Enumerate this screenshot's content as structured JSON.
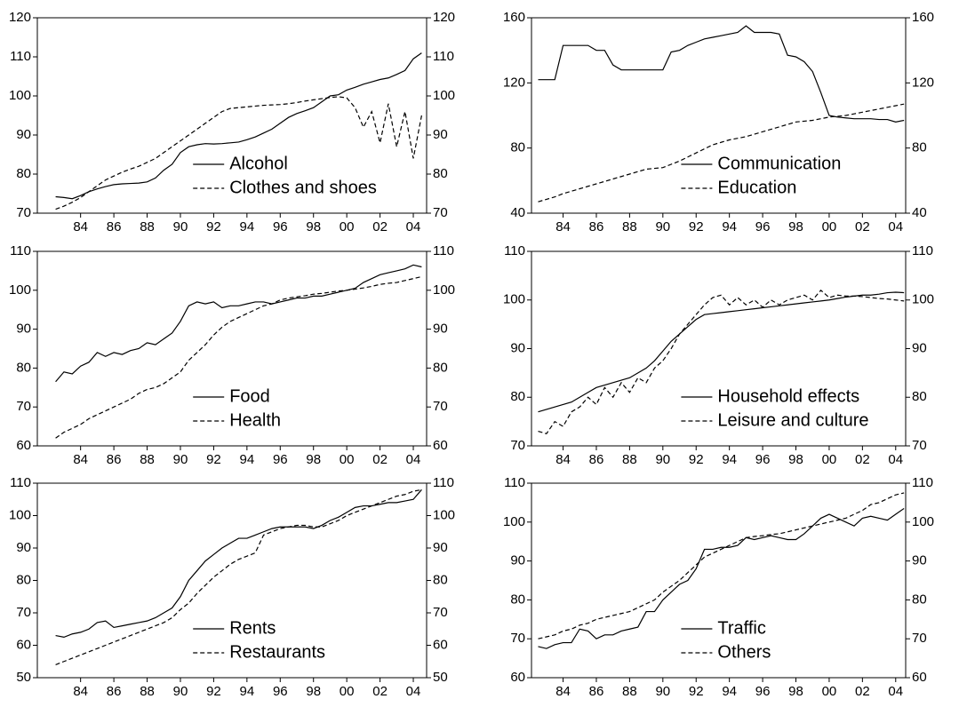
{
  "chart_data": [
    {
      "type": "line",
      "legend": "lower center",
      "x": [
        82.5,
        83,
        83.5,
        84,
        84.5,
        85,
        85.5,
        86,
        86.5,
        87,
        87.5,
        88,
        88.5,
        89,
        89.5,
        90,
        90.5,
        91,
        91.5,
        92,
        92.5,
        93,
        93.5,
        94,
        94.5,
        95,
        95.5,
        96,
        96.5,
        97,
        97.5,
        98,
        98.5,
        99,
        99.5,
        100,
        100.5,
        101,
        101.5,
        102,
        102.5,
        103,
        103.5,
        104,
        104.5
      ],
      "xlim": [
        81.4,
        104.8
      ],
      "xticks": [
        84,
        86,
        88,
        90,
        92,
        94,
        96,
        98,
        {
          "value": 100,
          "label": "00"
        },
        {
          "value": 102,
          "label": "02"
        },
        {
          "value": 104,
          "label": "04"
        }
      ],
      "ylim": [
        70,
        120
      ],
      "yticks": [
        70,
        80,
        90,
        100,
        110,
        120
      ],
      "series": [
        {
          "name": "Alcohol",
          "color": "#000000",
          "dash": "solid",
          "values": [
            74.2,
            74,
            73.7,
            74.5,
            75.5,
            76.2,
            76.8,
            77.3,
            77.5,
            77.6,
            77.7,
            78,
            79,
            81,
            82.5,
            85.5,
            87,
            87.5,
            87.8,
            87.7,
            87.8,
            88,
            88.2,
            88.8,
            89.5,
            90.5,
            91.5,
            93,
            94.5,
            95.5,
            96.2,
            97,
            98.5,
            100,
            100.3,
            101.5,
            102.2,
            103,
            103.6,
            104.2,
            104.6,
            105.5,
            106.5,
            109.5,
            111
          ]
        },
        {
          "name": "Clothes and shoes",
          "color": "#000000",
          "dash": "dashed",
          "values": [
            71,
            71.8,
            72.8,
            74,
            75.5,
            77,
            78.5,
            79.5,
            80.5,
            81.3,
            82,
            83,
            84,
            85.5,
            87,
            88.5,
            90,
            91.5,
            93,
            94.5,
            96,
            96.8,
            97,
            97.2,
            97.4,
            97.6,
            97.7,
            97.8,
            98,
            98.3,
            98.7,
            99,
            99.3,
            99.6,
            99.8,
            99.5,
            97,
            92,
            96,
            88,
            98,
            87,
            96,
            84,
            95
          ]
        }
      ]
    },
    {
      "type": "line",
      "legend": "lower center",
      "x": [
        82.5,
        83,
        83.5,
        84,
        84.5,
        85,
        85.5,
        86,
        86.5,
        87,
        87.5,
        88,
        88.5,
        89,
        89.5,
        90,
        90.5,
        91,
        91.5,
        92,
        92.5,
        93,
        93.5,
        94,
        94.5,
        95,
        95.5,
        96,
        96.5,
        97,
        97.5,
        98,
        98.5,
        99,
        99.5,
        100,
        100.5,
        101,
        101.5,
        102,
        102.5,
        103,
        103.5,
        104,
        104.5
      ],
      "xlim": [
        82.1,
        104.6
      ],
      "xticks": [
        84,
        86,
        88,
        90,
        92,
        94,
        96,
        98,
        {
          "value": 100,
          "label": "00"
        },
        {
          "value": 102,
          "label": "02"
        },
        {
          "value": 104,
          "label": "04"
        }
      ],
      "ylim": [
        40,
        160
      ],
      "yticks": [
        40,
        80,
        120,
        160
      ],
      "series": [
        {
          "name": "Communication",
          "color": "#000000",
          "dash": "solid",
          "values": [
            122,
            122,
            122,
            143,
            143,
            143,
            143,
            140,
            140,
            131,
            128,
            128,
            128,
            128,
            128,
            128,
            139,
            140,
            143,
            145,
            147,
            148,
            149,
            150,
            151,
            155,
            151,
            151,
            151,
            150,
            137,
            136,
            133,
            127,
            114,
            100,
            99,
            98.5,
            98,
            98,
            98,
            97.5,
            97.5,
            96,
            97
          ]
        },
        {
          "name": "Education",
          "color": "#000000",
          "dash": "dashed",
          "values": [
            47,
            48.5,
            50,
            52,
            53.5,
            55,
            56.5,
            58,
            59.5,
            61,
            62.5,
            64,
            65.5,
            67,
            67.5,
            68,
            70,
            72,
            74.5,
            77,
            79.5,
            82,
            83.5,
            85,
            86,
            87,
            88.5,
            90,
            91.5,
            93,
            94.5,
            96,
            96.5,
            97,
            98,
            99,
            99.5,
            100,
            101,
            102,
            103,
            104,
            105,
            106,
            107
          ]
        }
      ]
    },
    {
      "type": "line",
      "legend": "lower center",
      "x": [
        82.5,
        83,
        83.5,
        84,
        84.5,
        85,
        85.5,
        86,
        86.5,
        87,
        87.5,
        88,
        88.5,
        89,
        89.5,
        90,
        90.5,
        91,
        91.5,
        92,
        92.5,
        93,
        93.5,
        94,
        94.5,
        95,
        95.5,
        96,
        96.5,
        97,
        97.5,
        98,
        98.5,
        99,
        99.5,
        100,
        100.5,
        101,
        101.5,
        102,
        102.5,
        103,
        103.5,
        104,
        104.5
      ],
      "xlim": [
        81.4,
        104.8
      ],
      "xticks": [
        84,
        86,
        88,
        90,
        92,
        94,
        96,
        98,
        {
          "value": 100,
          "label": "00"
        },
        {
          "value": 102,
          "label": "02"
        },
        {
          "value": 104,
          "label": "04"
        }
      ],
      "ylim": [
        60,
        110
      ],
      "yticks": [
        60,
        70,
        80,
        90,
        100,
        110
      ],
      "series": [
        {
          "name": "Food",
          "color": "#000000",
          "dash": "solid",
          "values": [
            76.5,
            79,
            78.5,
            80.5,
            81.5,
            84,
            83,
            84,
            83.5,
            84.5,
            85,
            86.5,
            86,
            87.5,
            89,
            92,
            96,
            97,
            96.5,
            97,
            95.5,
            96,
            96,
            96.5,
            97,
            97,
            96.5,
            97,
            97.5,
            98,
            98,
            98.5,
            98.5,
            99,
            99.5,
            100,
            100.5,
            102,
            103,
            104,
            104.5,
            105,
            105.5,
            106.5,
            106
          ]
        },
        {
          "name": "Health",
          "color": "#000000",
          "dash": "dashed",
          "values": [
            62,
            63.5,
            64.5,
            65.5,
            67,
            68,
            69,
            70,
            71,
            72,
            73.5,
            74.5,
            75,
            76,
            77.5,
            79,
            82,
            84,
            86,
            88.5,
            90.5,
            92,
            93,
            94,
            95,
            96,
            96.5,
            97.5,
            98,
            98.3,
            98.6,
            99,
            99.2,
            99.5,
            99.8,
            100,
            100.3,
            100.6,
            101,
            101.5,
            101.8,
            102,
            102.5,
            103,
            103.5
          ]
        }
      ]
    },
    {
      "type": "line",
      "legend": "lower center",
      "x": [
        82.5,
        83,
        83.5,
        84,
        84.5,
        85,
        85.5,
        86,
        86.5,
        87,
        87.5,
        88,
        88.5,
        89,
        89.5,
        90,
        90.5,
        91,
        91.5,
        92,
        92.5,
        93,
        93.5,
        94,
        94.5,
        95,
        95.5,
        96,
        96.5,
        97,
        97.5,
        98,
        98.5,
        99,
        99.5,
        100,
        100.5,
        101,
        101.5,
        102,
        102.5,
        103,
        103.5,
        104,
        104.5
      ],
      "xlim": [
        82.1,
        104.6
      ],
      "xticks": [
        84,
        86,
        88,
        90,
        92,
        94,
        96,
        98,
        {
          "value": 100,
          "label": "00"
        },
        {
          "value": 102,
          "label": "02"
        },
        {
          "value": 104,
          "label": "04"
        }
      ],
      "ylim": [
        70,
        110
      ],
      "yticks": [
        70,
        80,
        90,
        100,
        110
      ],
      "series": [
        {
          "name": "Household effects",
          "color": "#000000",
          "dash": "solid",
          "values": [
            77,
            77.5,
            78,
            78.5,
            79,
            80,
            81,
            82,
            82.5,
            83,
            83.5,
            84,
            85,
            86,
            87.5,
            89.5,
            91.5,
            93,
            94.5,
            96,
            97,
            97.2,
            97.4,
            97.6,
            97.8,
            98,
            98.2,
            98.4,
            98.6,
            98.8,
            99,
            99.2,
            99.4,
            99.6,
            99.8,
            100,
            100.3,
            100.6,
            100.8,
            101,
            101,
            101.2,
            101.5,
            101.6,
            101.5
          ]
        },
        {
          "name": "Leisure and culture",
          "color": "#000000",
          "dash": "dashed",
          "values": [
            73,
            72.5,
            75,
            74,
            77,
            78,
            80,
            78.5,
            82,
            80,
            83,
            81,
            84,
            83,
            86,
            87.5,
            90,
            93,
            95,
            97,
            99,
            100.5,
            101,
            99,
            100.5,
            99,
            100,
            98.5,
            100,
            99,
            100,
            100.5,
            101,
            100,
            102,
            100.5,
            101,
            100.8,
            100.8,
            100.7,
            100.5,
            100.3,
            100.2,
            100,
            99.8
          ]
        }
      ]
    },
    {
      "type": "line",
      "legend": "lower center",
      "x": [
        82.5,
        83,
        83.5,
        84,
        84.5,
        85,
        85.5,
        86,
        86.5,
        87,
        87.5,
        88,
        88.5,
        89,
        89.5,
        90,
        90.5,
        91,
        91.5,
        92,
        92.5,
        93,
        93.5,
        94,
        94.5,
        95,
        95.5,
        96,
        96.5,
        97,
        97.5,
        98,
        98.5,
        99,
        99.5,
        100,
        100.5,
        101,
        101.5,
        102,
        102.5,
        103,
        103.5,
        104,
        104.5
      ],
      "xlim": [
        81.4,
        104.8
      ],
      "xticks": [
        84,
        86,
        88,
        90,
        92,
        94,
        96,
        98,
        {
          "value": 100,
          "label": "00"
        },
        {
          "value": 102,
          "label": "02"
        },
        {
          "value": 104,
          "label": "04"
        }
      ],
      "ylim": [
        50,
        110
      ],
      "yticks": [
        50,
        60,
        70,
        80,
        90,
        100,
        110
      ],
      "series": [
        {
          "name": "Rents",
          "color": "#000000",
          "dash": "solid",
          "values": [
            63,
            62.5,
            63.5,
            64,
            65,
            67,
            67.5,
            65.5,
            66,
            66.5,
            67,
            67.5,
            68.5,
            70,
            71.5,
            75,
            80,
            83,
            86,
            88,
            90,
            91.5,
            93,
            93,
            94,
            95,
            96,
            96.5,
            96.5,
            96.5,
            96.5,
            96,
            97,
            98.5,
            99.5,
            101,
            102.5,
            103,
            103,
            103.5,
            104,
            104,
            104.5,
            105,
            108
          ]
        },
        {
          "name": "Restaurants",
          "color": "#000000",
          "dash": "dashed",
          "values": [
            54,
            55,
            56,
            57,
            58,
            59,
            60,
            61,
            62,
            63,
            64,
            65,
            66,
            67,
            68.5,
            71,
            73,
            76,
            78.5,
            81,
            83,
            85,
            86.5,
            87.5,
            88.5,
            94,
            95,
            96,
            96.5,
            97,
            97,
            96.5,
            96.5,
            97.5,
            98.5,
            100,
            101,
            102,
            103,
            104,
            105,
            106,
            106.5,
            107.5,
            108
          ]
        }
      ]
    },
    {
      "type": "line",
      "legend": "lower center",
      "x": [
        82.5,
        83,
        83.5,
        84,
        84.5,
        85,
        85.5,
        86,
        86.5,
        87,
        87.5,
        88,
        88.5,
        89,
        89.5,
        90,
        90.5,
        91,
        91.5,
        92,
        92.5,
        93,
        93.5,
        94,
        94.5,
        95,
        95.5,
        96,
        96.5,
        97,
        97.5,
        98,
        98.5,
        99,
        99.5,
        100,
        100.5,
        101,
        101.5,
        102,
        102.5,
        103,
        103.5,
        104,
        104.5
      ],
      "xlim": [
        82.1,
        104.6
      ],
      "xticks": [
        84,
        86,
        88,
        90,
        92,
        94,
        96,
        98,
        {
          "value": 100,
          "label": "00"
        },
        {
          "value": 102,
          "label": "02"
        },
        {
          "value": 104,
          "label": "04"
        }
      ],
      "ylim": [
        60,
        110
      ],
      "yticks": [
        60,
        70,
        80,
        90,
        100,
        110
      ],
      "series": [
        {
          "name": "Traffic",
          "color": "#000000",
          "dash": "solid",
          "values": [
            68,
            67.5,
            68.5,
            69,
            69,
            72.5,
            72,
            70,
            71,
            71,
            72,
            72.5,
            73,
            77,
            77,
            80,
            82,
            84,
            85,
            88,
            93,
            93,
            93.5,
            93.5,
            94,
            96,
            95.5,
            96,
            96.5,
            96,
            95.5,
            95.5,
            97,
            99,
            101,
            102,
            101,
            100,
            99,
            101,
            101.5,
            101,
            100.5,
            102,
            103.5
          ]
        },
        {
          "name": "Others",
          "color": "#000000",
          "dash": "dashed",
          "values": [
            70,
            70.5,
            71,
            72,
            72.5,
            73.5,
            74,
            75,
            75.5,
            76,
            76.5,
            77,
            78,
            79,
            80,
            82,
            83.5,
            85,
            87,
            89,
            91,
            92,
            93,
            94,
            95,
            96,
            96.3,
            96.5,
            96.8,
            97,
            97.5,
            98,
            98.5,
            99,
            99.5,
            100,
            100.5,
            101,
            102,
            103,
            104.5,
            105,
            106,
            107,
            107.5
          ]
        }
      ]
    }
  ]
}
